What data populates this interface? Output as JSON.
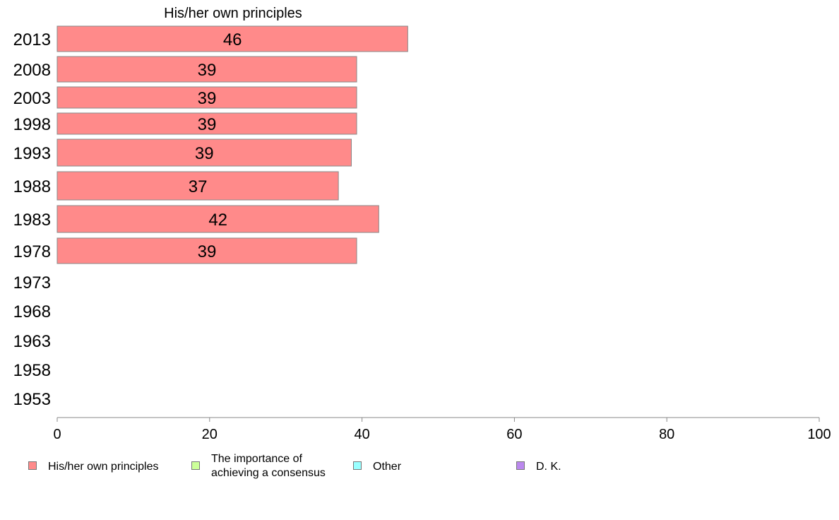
{
  "chart_data": {
    "type": "bar",
    "orientation": "horizontal",
    "title": "His/her own principles",
    "categories": [
      "2013",
      "2008",
      "2003",
      "1998",
      "1993",
      "1988",
      "1983",
      "1978",
      "1973",
      "1968",
      "1963",
      "1958",
      "1953"
    ],
    "values": [
      46,
      39,
      39,
      39,
      39,
      37,
      42,
      39,
      null,
      null,
      null,
      null,
      null
    ],
    "bar_lengths": [
      46.0,
      39.3,
      39.3,
      39.3,
      38.6,
      36.9,
      42.2,
      39.3,
      null,
      null,
      null,
      null,
      null
    ],
    "xlim": [
      0,
      100
    ],
    "xticks": [
      0,
      20,
      40,
      60,
      80,
      100
    ],
    "xlabel": "",
    "ylabel": "",
    "grid": false,
    "legend_position": "bottom",
    "legend": [
      {
        "label": "His/her own principles",
        "color": "#ff8a8a"
      },
      {
        "label": "The importance of\nachieving a consensus",
        "color": "#ccff99"
      },
      {
        "label": "Other",
        "color": "#99ffff"
      },
      {
        "label": "D. K.",
        "color": "#bb88ee"
      }
    ],
    "bar_color": "#ff8a8a",
    "bar_border": "#888888"
  }
}
